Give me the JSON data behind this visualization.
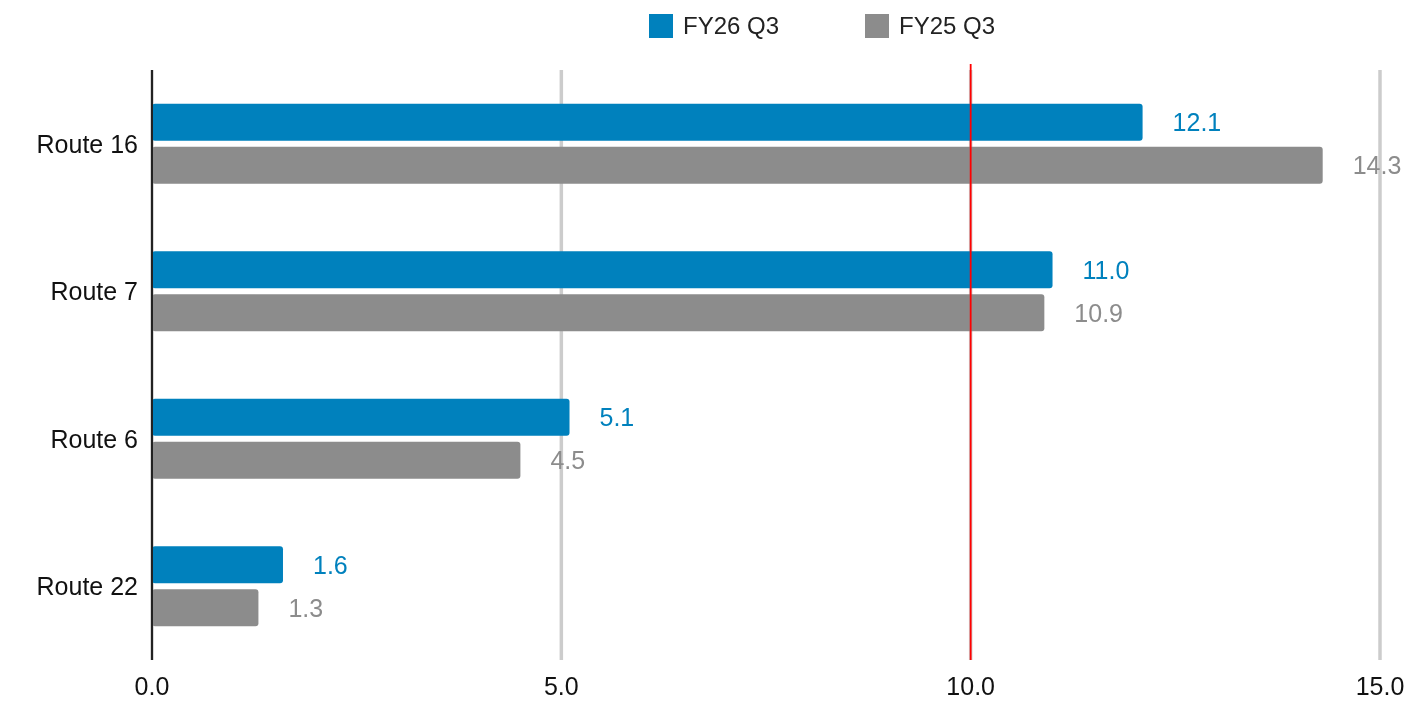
{
  "chart_data": {
    "type": "bar",
    "orientation": "horizontal",
    "categories": [
      "Route 16",
      "Route 7",
      "Route 6",
      "Route 22"
    ],
    "series": [
      {
        "name": "FY26 Q3",
        "color": "#0081bd",
        "values": [
          12.1,
          11.0,
          5.1,
          1.6
        ]
      },
      {
        "name": "FY25 Q3",
        "color": "#8c8c8c",
        "values": [
          14.3,
          10.9,
          4.5,
          1.3
        ]
      }
    ],
    "value_labels": [
      [
        "12.1",
        "11.0",
        "5.1",
        "1.6"
      ],
      [
        "14.3",
        "10.9",
        "4.5",
        "1.3"
      ]
    ],
    "xlim": [
      0,
      15
    ],
    "xticks": [
      {
        "value": 0,
        "label": "0.0"
      },
      {
        "value": 5,
        "label": "5.0"
      },
      {
        "value": 10,
        "label": "10.0"
      },
      {
        "value": 15,
        "label": "15.0"
      }
    ],
    "grid": "x",
    "legend": "top",
    "ref_lines": [
      {
        "axis": "x",
        "value": 10,
        "color": "#ff0000"
      }
    ]
  }
}
